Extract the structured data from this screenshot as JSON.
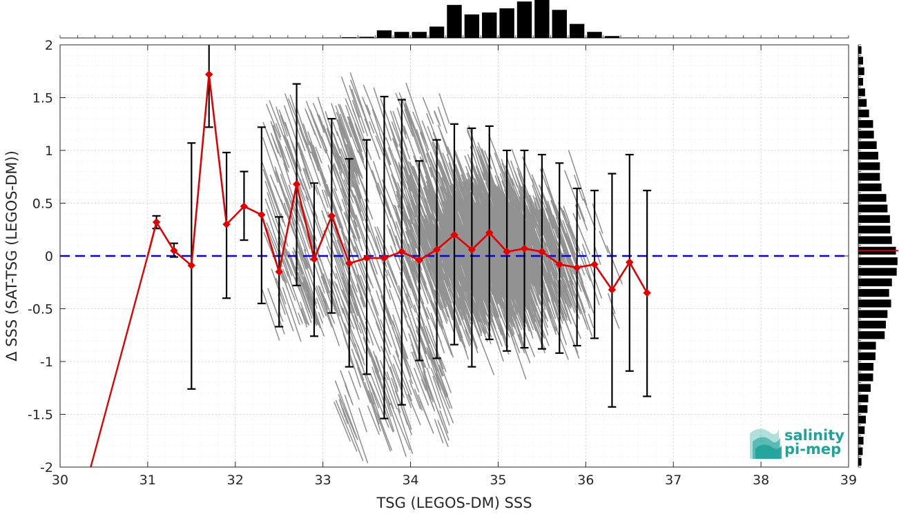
{
  "chart_data": {
    "type": "scatter",
    "title": "",
    "xlabel": "TSG (LEGOS-DM) SSS",
    "ylabel": "Δ SSS (SAT-TSG (LEGOS-DM))",
    "xlim": [
      30,
      39
    ],
    "ylim": [
      -2,
      2
    ],
    "xticks": [
      30,
      31,
      32,
      33,
      34,
      35,
      36,
      37,
      38,
      39
    ],
    "yticks": [
      -2,
      -1.5,
      -1,
      -0.5,
      0,
      0.5,
      1,
      1.5,
      2
    ],
    "xtick_labels": [
      "30",
      "31",
      "32",
      "33",
      "34",
      "35",
      "36",
      "37",
      "38",
      "39"
    ],
    "ytick_labels": [
      "-2",
      "-1.5",
      "-1",
      "-0.5",
      "0",
      "0.5",
      "1",
      "1.5",
      "2"
    ],
    "grid": true,
    "reference_line": {
      "y": 0,
      "color": "#0000dd",
      "style": "dashed"
    },
    "series": [
      {
        "kind": "binned_mean_with_std",
        "color": "#e00000",
        "x": [
          31.1,
          31.3,
          31.5,
          31.7,
          31.9,
          32.1,
          32.3,
          32.5,
          32.7,
          32.9,
          33.1,
          33.3,
          33.5,
          33.7,
          33.9,
          34.1,
          34.3,
          34.5,
          34.7,
          34.9,
          35.1,
          35.3,
          35.5,
          35.7,
          35.9,
          36.1,
          36.3,
          36.5,
          36.7
        ],
        "mean": [
          0.32,
          0.05,
          -0.09,
          1.72,
          0.3,
          0.47,
          0.39,
          -0.15,
          0.68,
          -0.03,
          0.38,
          -0.07,
          -0.02,
          -0.02,
          0.04,
          -0.04,
          0.06,
          0.2,
          0.06,
          0.22,
          0.04,
          0.07,
          0.04,
          -0.08,
          -0.11,
          -0.08,
          -0.32,
          -0.06,
          -0.35
        ],
        "err_low": [
          0.26,
          -0.01,
          -1.26,
          1.22,
          -0.4,
          0.15,
          -0.45,
          -0.67,
          -0.28,
          -0.76,
          -0.54,
          -1.05,
          -1.12,
          -1.54,
          -1.41,
          -0.99,
          -0.97,
          -0.84,
          -1.05,
          -0.79,
          -0.9,
          -0.87,
          -0.88,
          -0.92,
          -0.85,
          -0.78,
          -1.43,
          -1.09,
          -1.33
        ],
        "err_high": [
          0.38,
          0.12,
          1.07,
          2.05,
          0.98,
          0.8,
          1.22,
          0.37,
          1.63,
          0.69,
          1.3,
          0.92,
          1.1,
          1.51,
          1.48,
          0.9,
          1.1,
          1.25,
          1.21,
          1.23,
          1.0,
          1.0,
          0.96,
          0.88,
          0.64,
          0.62,
          0.78,
          0.96,
          0.62
        ],
        "extension_line": {
          "from": [
            30.35,
            -2.0
          ],
          "to": [
            31.0,
            0.0
          ]
        }
      }
    ],
    "scatter_cloud": {
      "color": "#8c8c8c",
      "note": "dense grey diagonal streaks of individual SAT-TSG differences, concentrated over x 33.2-36.2"
    },
    "top_histogram": {
      "bin_width": 0.2,
      "bin_centers": [
        33.1,
        33.3,
        33.5,
        33.7,
        33.9,
        34.1,
        34.3,
        34.5,
        34.7,
        34.9,
        35.1,
        35.3,
        35.5,
        35.7,
        35.9,
        36.1,
        36.3,
        36.5
      ],
      "relative_counts": [
        0.01,
        0.02,
        0.03,
        0.2,
        0.16,
        0.16,
        0.3,
        0.87,
        0.62,
        0.67,
        0.78,
        0.96,
        1.0,
        0.74,
        0.37,
        0.16,
        0.05,
        0.01
      ]
    },
    "right_histogram": {
      "bin_width": 0.1,
      "bin_centers": [
        1.95,
        1.85,
        1.75,
        1.65,
        1.55,
        1.45,
        1.35,
        1.25,
        1.15,
        1.05,
        0.95,
        0.85,
        0.75,
        0.65,
        0.55,
        0.45,
        0.35,
        0.25,
        0.15,
        0.05,
        -0.05,
        -0.15,
        -0.25,
        -0.35,
        -0.45,
        -0.55,
        -0.65,
        -0.75,
        -0.85,
        -0.95,
        -1.05,
        -1.15,
        -1.25,
        -1.35,
        -1.45,
        -1.55,
        -1.65,
        -1.75,
        -1.85,
        -1.95
      ],
      "relative_counts": [
        0.08,
        0.12,
        0.15,
        0.12,
        0.17,
        0.21,
        0.27,
        0.37,
        0.39,
        0.46,
        0.5,
        0.54,
        0.54,
        0.58,
        0.7,
        0.73,
        0.79,
        0.8,
        0.84,
        0.94,
        0.98,
        0.96,
        0.84,
        0.77,
        0.82,
        0.73,
        0.69,
        0.66,
        0.44,
        0.43,
        0.38,
        0.37,
        0.31,
        0.25,
        0.23,
        0.19,
        0.16,
        0.13,
        0.11,
        0.08
      ],
      "median_line": {
        "y": 0.05,
        "color": "#e00000"
      }
    },
    "logo": {
      "line1": "salinity",
      "line2": "pi-mep",
      "color": "#1fa39a"
    }
  }
}
